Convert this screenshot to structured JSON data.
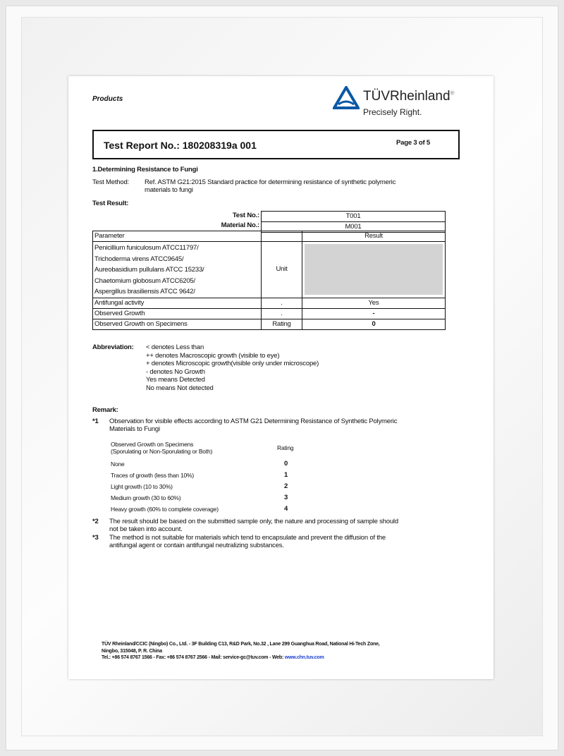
{
  "header": {
    "section": "Products",
    "brand": "TÜVRheinland",
    "registered": "®",
    "tagline": "Precisely Right.",
    "brand_color": "#0a58a6"
  },
  "report": {
    "title": "Test Report No.: 180208319a 001",
    "page": "Page 3 of 5"
  },
  "section_title": "1.Determining Resistance to Fungi",
  "method": {
    "label": "Test Method:",
    "text1": "Ref. ASTM G21:2015 Standard practice for determining resistance of synthetic polymeric",
    "text2": "materials to fungi"
  },
  "result_label": "Test Result:",
  "table": {
    "test_no_label": "Test No.:",
    "test_no": "T001",
    "material_no_label": "Material No.:",
    "material_no": "M001",
    "col_parameter": "Parameter",
    "col_result": "Result",
    "organisms": [
      "Penicillium funiculosum ATCC11797/",
      "Trichoderma virens ATCC9645/",
      "Aureobasidium pullulans ATCC 15233/",
      "Chaetomium globosum ATCC6205/",
      "Aspergillus brasiliensis ATCC 9642/"
    ],
    "organisms_unit": "Unit",
    "rows": [
      {
        "parameter": "Antifungal activity",
        "unit": ".",
        "result": "Yes"
      },
      {
        "parameter": "Observed Growth",
        "unit": ".",
        "result": "-"
      },
      {
        "parameter": "Observed Growth on Specimens",
        "unit": "Rating",
        "result": "0"
      }
    ]
  },
  "abbreviation": {
    "label": "Abbreviation:",
    "lines": [
      "< denotes Less than",
      "++ denotes Macroscopic growth (visible to eye)",
      "+ denotes  Microscopic growth(visible only under microscope)",
      "- denotes No Growth",
      "Yes means Detected",
      "No means Not detected"
    ]
  },
  "remark": {
    "label": "Remark:",
    "r1_num": "*1",
    "r1_line1": "Observation for visible effects according to ASTM G21 Determining Resistance of Synthetic Polymeric",
    "r1_line2": "Materials to Fungi",
    "rating_head1": "Observed Growth on Specimens",
    "rating_head2": "(Sporulating or Non-Sporulating or Both)",
    "rating_col": "Rating",
    "ratings": [
      {
        "label": "None",
        "value": "0"
      },
      {
        "label": "Traces of growth (less than 10%)",
        "value": "1"
      },
      {
        "label": "Light growth (10 to 30%)",
        "value": "2"
      },
      {
        "label": "Medium growth (30 to 60%)",
        "value": "3"
      },
      {
        "label": "Heavy growth (60% to complete coverage)",
        "value": "4"
      }
    ],
    "r2_num": "*2",
    "r2_line1": "The result should be based on the submitted sample only, the nature and processing of sample should",
    "r2_line2": "not be taken into account.",
    "r3_num": "*3",
    "r3_line1": "The method is not suitable for materials which tend to encapsulate and prevent the diffusion of the",
    "r3_line2": "antifungal agent or contain antifungal neutralizing substances."
  },
  "footer": {
    "line1": "TÜV Rheinland/CCIC (Ningbo) Co., Ltd. - 3F Building C13, R&D Park, No.32 , Lane 299 Guanghua Road, National Hi-Tech Zone,",
    "line2": "Ningbo, 315048, P. R. China",
    "line3": "Tel.: +86 574 8767 1566 - Fax: +86 574 8767 2566 - Mail: service-gc@tuv.com - Web: ",
    "web": "www.chn.tuv.com"
  }
}
